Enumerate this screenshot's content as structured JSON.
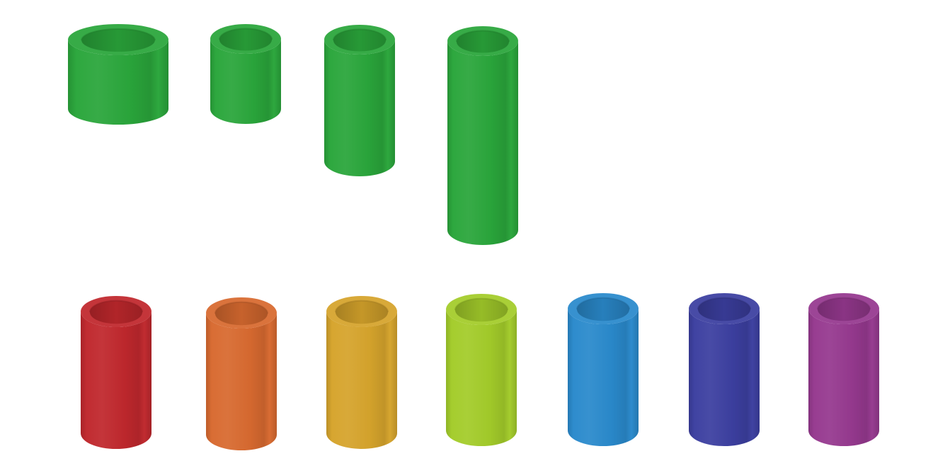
{
  "colors": {
    "background": "#ffffff",
    "green": "#2aa63b",
    "red": "#c0282d",
    "orange": "#d86a30",
    "amber": "#d6a42c",
    "lime": "#a3cc2a",
    "blue": "#2a8acc",
    "indigo": "#3c3fa0",
    "magenta": "#96398f"
  },
  "groups": [
    {
      "name": "green-size-set",
      "tubes": [
        {
          "name": "wide-short-green-tube",
          "color": "green"
        },
        {
          "name": "narrow-short-green-tube",
          "color": "green"
        },
        {
          "name": "medium-green-tube",
          "color": "green"
        },
        {
          "name": "tall-green-tube",
          "color": "green"
        }
      ]
    },
    {
      "name": "rainbow-set",
      "tubes": [
        {
          "name": "red-tube",
          "color": "red"
        },
        {
          "name": "orange-tube",
          "color": "orange"
        },
        {
          "name": "amber-tube",
          "color": "amber"
        },
        {
          "name": "lime-tube",
          "color": "lime"
        },
        {
          "name": "blue-tube",
          "color": "blue"
        },
        {
          "name": "indigo-tube",
          "color": "indigo"
        },
        {
          "name": "magenta-tube",
          "color": "magenta"
        }
      ]
    }
  ]
}
